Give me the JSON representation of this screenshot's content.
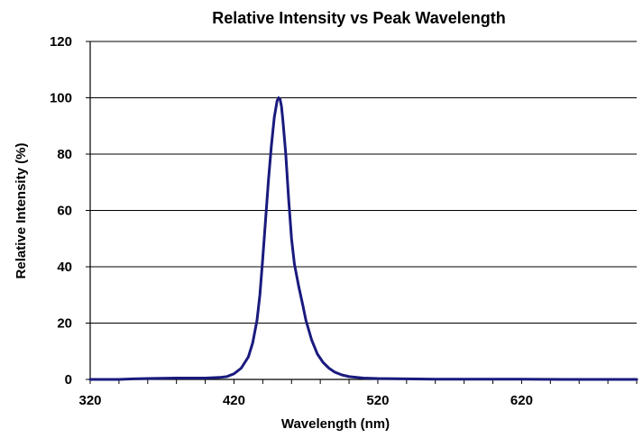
{
  "chart_data": {
    "type": "line",
    "title": "Relative Intensity vs Peak Wavelength",
    "xlabel": "Wavelength (nm)",
    "ylabel": "Relative Intensity (%)",
    "xlim": [
      320,
      700
    ],
    "ylim": [
      0,
      120
    ],
    "x_ticks": [
      320,
      420,
      520,
      620
    ],
    "x_tick_labels": [
      "320",
      "420",
      "520",
      "620"
    ],
    "x_minor_step": 20,
    "y_ticks": [
      0,
      20,
      40,
      60,
      80,
      100,
      120
    ],
    "y_tick_labels": [
      "0",
      "20",
      "40",
      "60",
      "80",
      "100",
      "120"
    ],
    "grid": "horizontal",
    "legend": "none",
    "colors": {
      "line": "#1a1a7e",
      "grid": "#000000",
      "axis": "#000000"
    },
    "series": [
      {
        "x": [
          320,
          340,
          350,
          360,
          370,
          380,
          390,
          400,
          410,
          415,
          420,
          425,
          430,
          433,
          436,
          438,
          440,
          442,
          444,
          446,
          448,
          450,
          451,
          452,
          453,
          454,
          456,
          458,
          460,
          462,
          465,
          468,
          470,
          474,
          478,
          482,
          486,
          490,
          495,
          500,
          510,
          520,
          540,
          560,
          580,
          600,
          620,
          650,
          680,
          700
        ],
        "y": [
          0,
          0,
          0.2,
          0.3,
          0.4,
          0.5,
          0.5,
          0.5,
          0.7,
          1,
          2,
          4,
          8,
          13,
          21,
          30,
          43,
          57,
          71,
          83,
          93,
          99,
          100,
          99.5,
          97,
          92,
          80,
          64,
          50,
          41,
          33,
          26,
          21,
          14,
          9,
          6,
          4,
          2.6,
          1.6,
          1,
          0.5,
          0.3,
          0.2,
          0.1,
          0.1,
          0.1,
          0.1,
          0,
          0,
          0
        ]
      }
    ]
  }
}
